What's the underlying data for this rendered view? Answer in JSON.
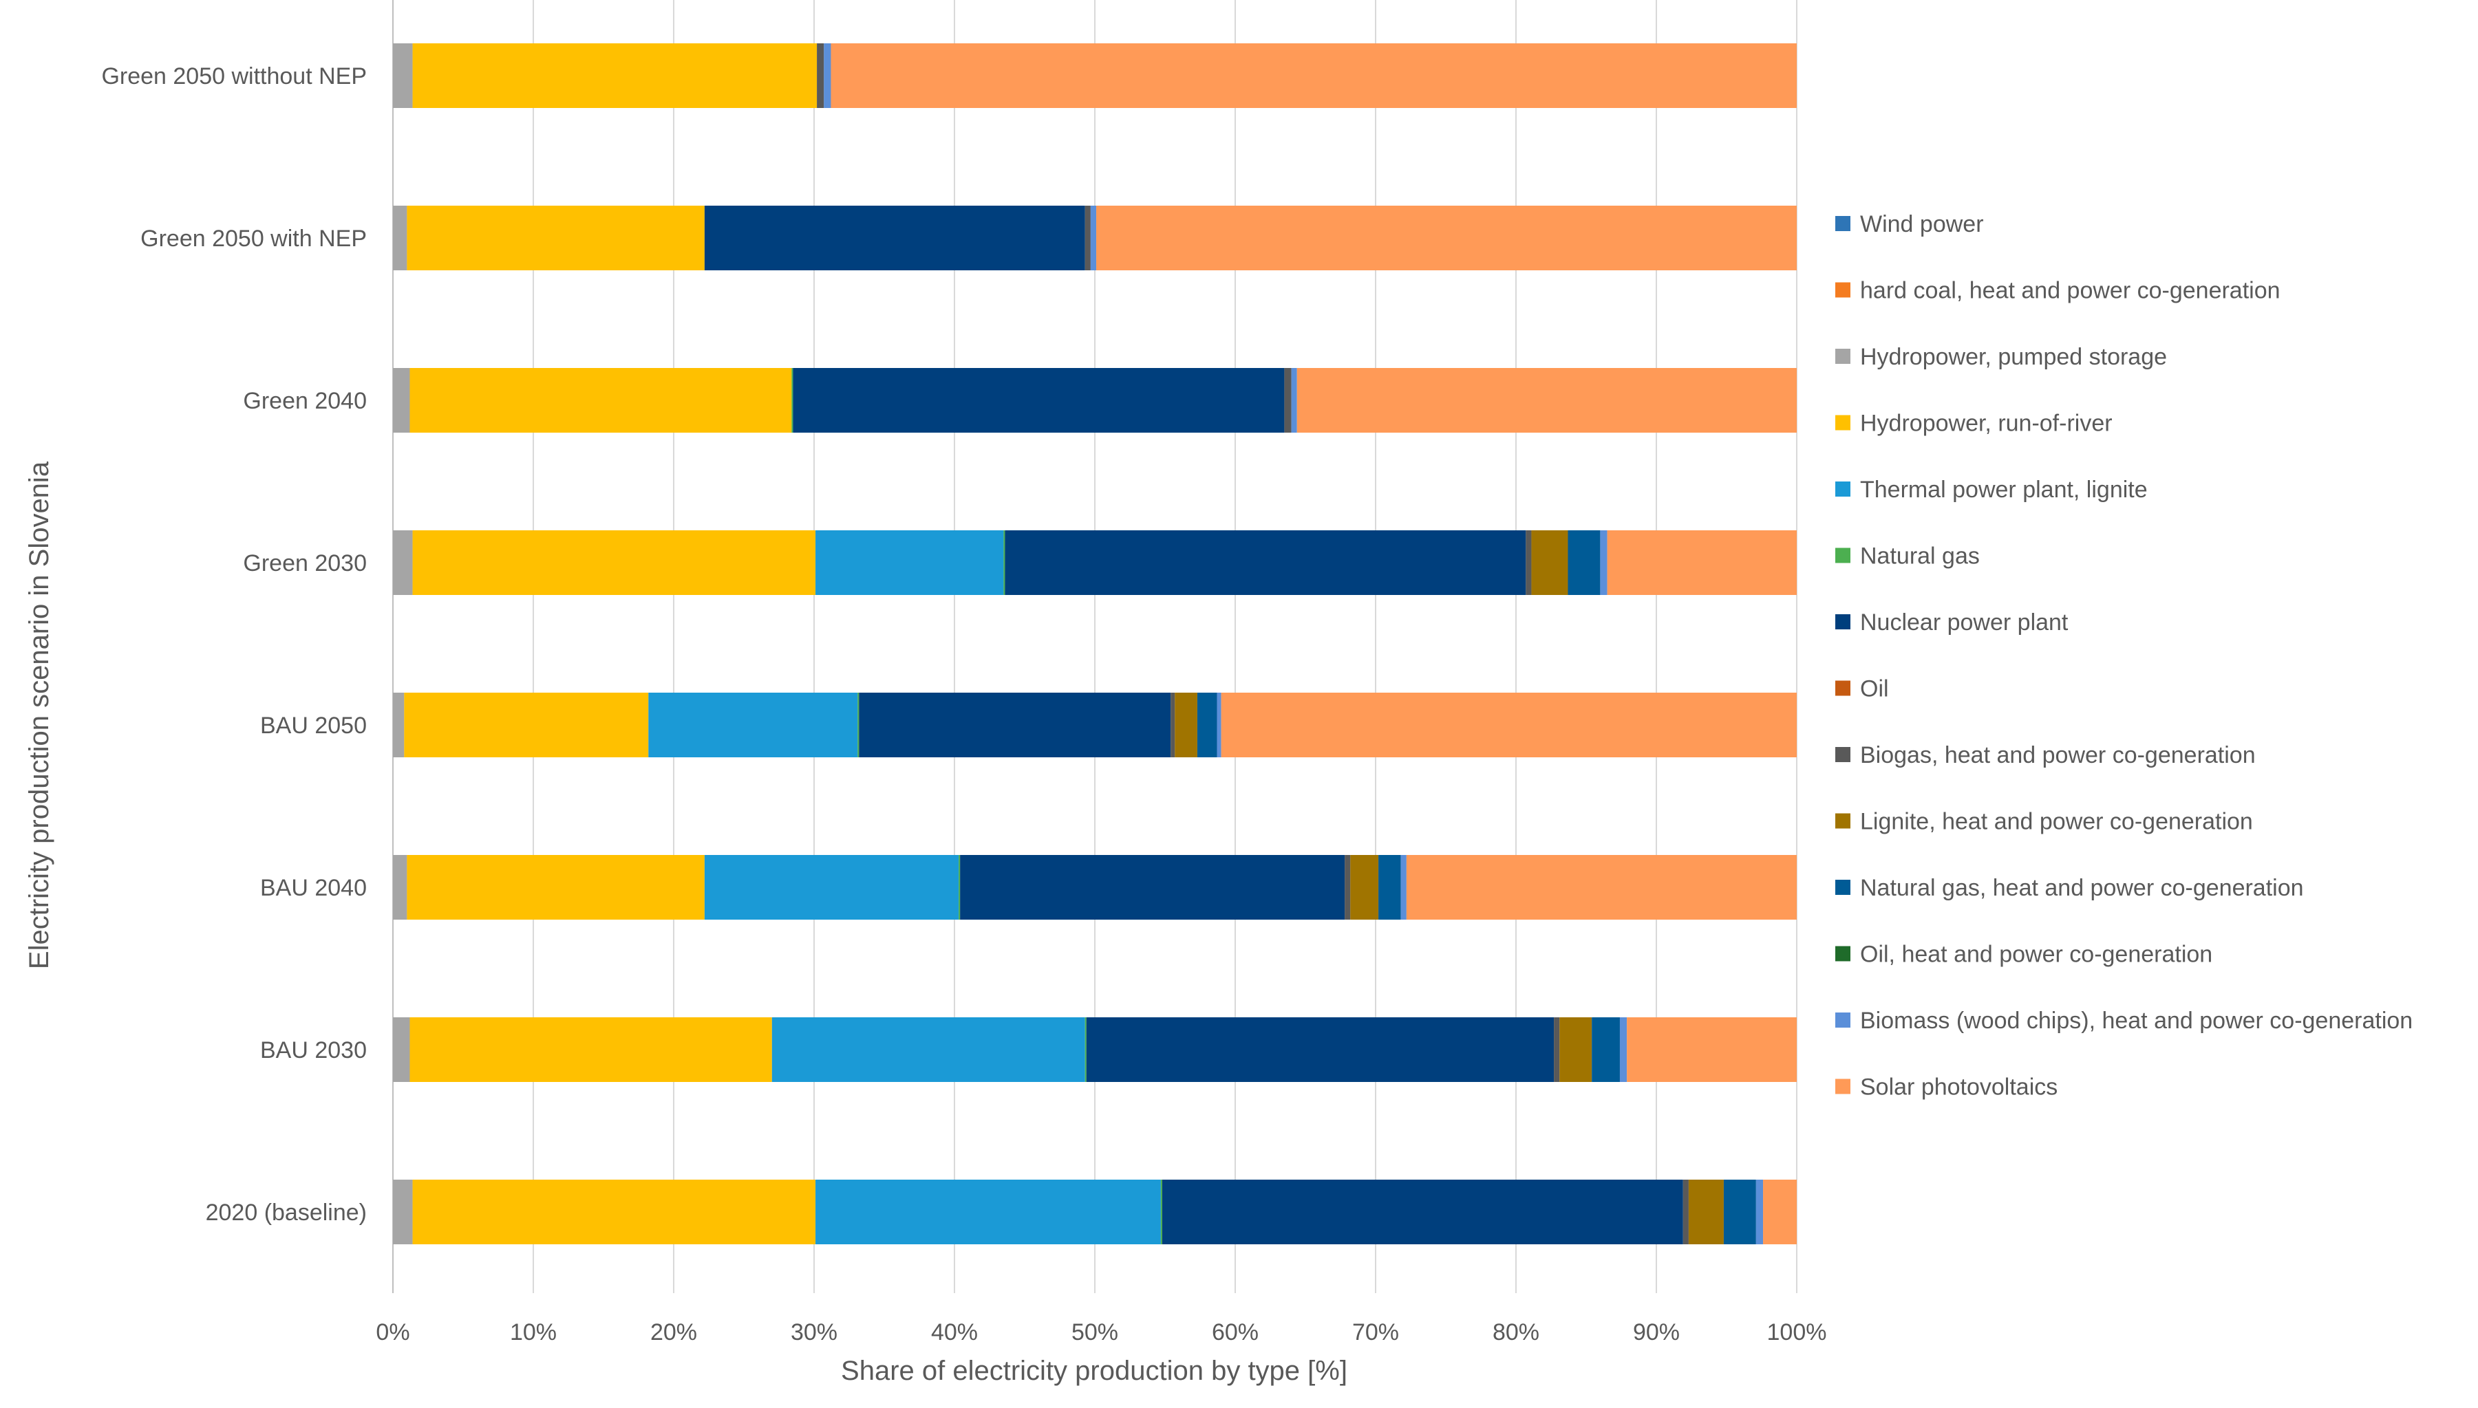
{
  "chart_data": {
    "type": "bar",
    "orientation": "horizontal",
    "stacked": true,
    "title": "",
    "xlabel": "Share of electricity production by type [%]",
    "ylabel": "Electricity production scenario in Slovenia",
    "xlim": [
      0,
      100
    ],
    "xticks": [
      "0%",
      "10%",
      "20%",
      "30%",
      "40%",
      "50%",
      "60%",
      "70%",
      "80%",
      "90%",
      "100%"
    ],
    "grid": "vertical",
    "legend_position": "right",
    "categories": [
      "2020 (baseline)",
      "BAU 2030",
      "BAU 2040",
      "BAU 2050",
      "Green 2030",
      "Green 2040",
      "Green 2050 with NEP",
      "Green 2050  witthout NEP"
    ],
    "series": [
      {
        "name": "Hydropower, pumped storage",
        "color": "#a5a5a5",
        "values": [
          1.4,
          1.2,
          1.0,
          0.8,
          1.4,
          1.2,
          1.0,
          1.4
        ]
      },
      {
        "name": "Hydropower, run-of-river",
        "color": "#ffc000",
        "values": [
          28.7,
          25.8,
          21.2,
          17.4,
          28.7,
          27.2,
          21.2,
          28.8
        ]
      },
      {
        "name": "Thermal power plant, lignite",
        "color": "#1b9ad6",
        "values": [
          24.6,
          22.3,
          18.1,
          14.9,
          13.4,
          0,
          0,
          0
        ]
      },
      {
        "name": "Natural gas",
        "color": "#4caf50",
        "values": [
          0.1,
          0.1,
          0.1,
          0.1,
          0.1,
          0.1,
          0,
          0
        ]
      },
      {
        "name": "Nuclear power plant",
        "color": "#003f7d",
        "values": [
          37.1,
          33.3,
          27.4,
          22.2,
          37.1,
          35.0,
          27.1,
          0
        ]
      },
      {
        "name": "Oil",
        "color": "#c55a11",
        "values": [
          0,
          0,
          0,
          0,
          0,
          0,
          0,
          0
        ]
      },
      {
        "name": "Biogas, heat and power co-generation",
        "color": "#595959",
        "values": [
          0.4,
          0.4,
          0.4,
          0.3,
          0.4,
          0.5,
          0.4,
          0.5
        ]
      },
      {
        "name": "Lignite, heat and power co-generation",
        "color": "#a07400",
        "values": [
          2.5,
          2.3,
          2.0,
          1.6,
          2.6,
          0,
          0,
          0
        ]
      },
      {
        "name": "Natural gas,  heat and power co-generation",
        "color": "#005b96",
        "values": [
          2.3,
          2.0,
          1.6,
          1.4,
          2.3,
          0,
          0,
          0
        ]
      },
      {
        "name": "Oil, heat and power co-generation",
        "color": "#1f6b2a",
        "values": [
          0,
          0,
          0,
          0,
          0,
          0,
          0,
          0
        ]
      },
      {
        "name": "Biomass (wood chips), heat and power co-generation",
        "color": "#5b8fd9",
        "values": [
          0.5,
          0.5,
          0.4,
          0.3,
          0.5,
          0.4,
          0.4,
          0.5
        ]
      },
      {
        "name": "Solar photovoltaics",
        "color": "#ff9a57",
        "values": [
          2.4,
          12.1,
          27.8,
          41.0,
          13.5,
          35.6,
          49.9,
          68.8
        ]
      },
      {
        "name": "hard coal,  heat and power co-generation",
        "color": "#f47c20",
        "values": [
          0,
          0,
          0,
          0,
          0,
          0,
          0,
          0
        ]
      },
      {
        "name": "Wind power",
        "color": "#2e75b6",
        "values": [
          0,
          0,
          0,
          0,
          0,
          0,
          0,
          0
        ]
      }
    ],
    "legend_order": [
      "Wind power",
      "hard coal,  heat and power co-generation",
      "Hydropower, pumped storage",
      "Hydropower, run-of-river",
      "Thermal power plant, lignite",
      "Natural gas",
      "Nuclear power plant",
      "Oil",
      "Biogas, heat and power co-generation",
      "Lignite, heat and power co-generation",
      "Natural gas,  heat and power co-generation",
      "Oil, heat and power co-generation",
      "Biomass (wood chips), heat and power co-generation",
      "Solar photovoltaics"
    ]
  }
}
